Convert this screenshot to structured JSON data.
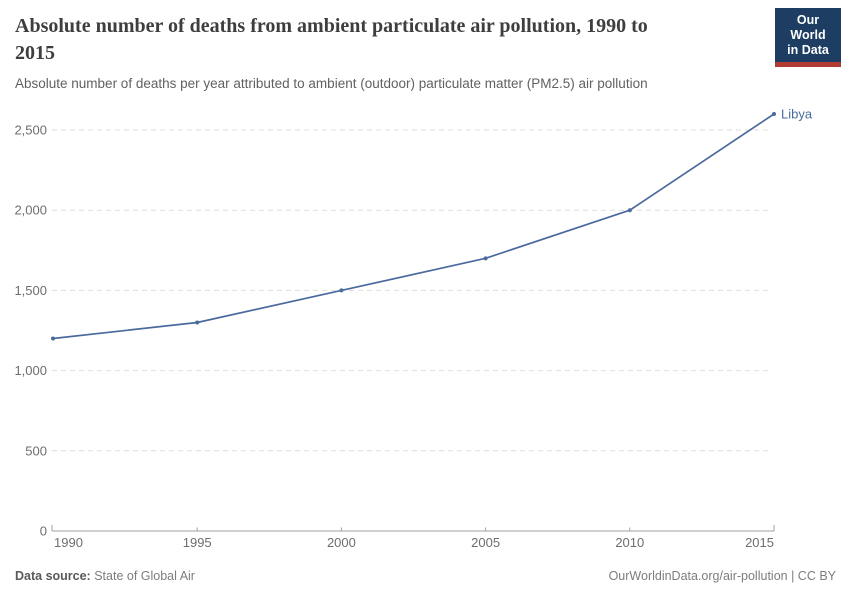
{
  "header": {
    "title": "Absolute number of deaths from ambient particulate air pollution, 1990 to 2015",
    "subtitle": "Absolute number of deaths per year attributed to ambient (outdoor) particulate matter (PM2.5) air pollution",
    "logo": {
      "line1": "Our World",
      "line2": "in Data"
    }
  },
  "chart_data": {
    "type": "line",
    "title": "Absolute number of deaths from ambient particulate air pollution, 1990 to 2015",
    "x": [
      1990,
      1995,
      2000,
      2005,
      2010,
      2015
    ],
    "xtick_labels": [
      "1990",
      "1995",
      "2000",
      "2005",
      "2010",
      "2015"
    ],
    "series": [
      {
        "name": "Libya",
        "values": [
          1200,
          1300,
          1500,
          1700,
          2000,
          2600
        ]
      }
    ],
    "xlabel": "",
    "ylabel": "",
    "ylim": [
      0,
      2600
    ],
    "yticks": [
      0,
      500,
      1000,
      1500,
      2000,
      2500
    ],
    "ytick_labels": [
      "0",
      "500",
      "1,000",
      "1,500",
      "2,000",
      "2,500"
    ],
    "grid": "horizontal-dashed",
    "legend": "end-of-line-label",
    "end_label": "Libya"
  },
  "colors": {
    "line": "#4a6a9e",
    "end_label": "#4a6a9e",
    "grid": "#dedede",
    "axis": "#a1a1a1",
    "tick_text": "#6e6e6e",
    "logo_bg": "#1d3d63",
    "logo_accent": "#b23b34"
  },
  "footer": {
    "source_label": "Data source:",
    "source_value": "State of Global Air",
    "license": "OurWorldinData.org/air-pollution | CC BY"
  }
}
